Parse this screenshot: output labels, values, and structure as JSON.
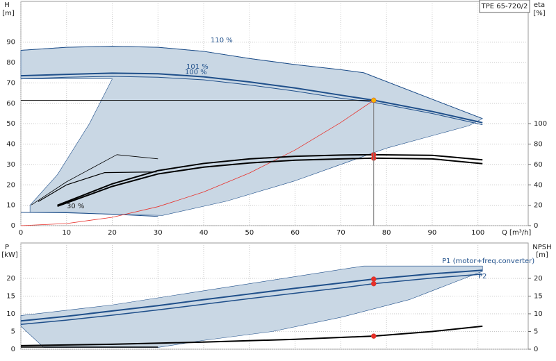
{
  "chart_data": [
    {
      "type": "line",
      "title": "TPE 65-720/2",
      "ylabel": [
        "H",
        "[m]"
      ],
      "y2label": [
        "eta",
        "[%]"
      ],
      "xlabel": "Q [m³/h]",
      "annotations": [
        "110 %",
        "101 %",
        "100 %",
        "30 %"
      ],
      "xlim": [
        0,
        111
      ],
      "xticks": [
        0,
        10,
        20,
        30,
        40,
        50,
        60,
        70,
        80,
        90,
        100
      ],
      "ylim": [
        0,
        110
      ],
      "yticks": [
        0,
        10,
        20,
        30,
        40,
        50,
        60,
        70,
        80,
        90
      ],
      "y2lim": [
        0,
        220
      ],
      "y2ticks": [
        0,
        20,
        40,
        60,
        80,
        100
      ],
      "grid": true,
      "series": [
        {
          "fill": "#c9d7e4",
          "color": "#1f4f8a",
          "width": 0.6,
          "x": [
            0,
            10,
            20,
            30,
            40,
            50,
            60,
            70,
            75,
            90,
            101,
            98,
            80,
            60,
            45,
            31,
            20,
            10,
            2,
            2,
            8,
            15,
            20,
            0
          ],
          "values": [
            86,
            87.5,
            88,
            87.5,
            85.5,
            82,
            79,
            76.5,
            75,
            62,
            52.5,
            49,
            38,
            22,
            12,
            5,
            5.5,
            6.5,
            6.5,
            10,
            25,
            50,
            72,
            72
          ]
        },
        {
          "color": "#1f4f8a",
          "width": 1,
          "x": [
            0,
            10,
            20,
            30,
            40,
            50,
            60,
            70,
            75,
            90,
            101
          ],
          "values": [
            86,
            87.5,
            88,
            87.5,
            85.5,
            82,
            79,
            76.5,
            75,
            62,
            52.5
          ]
        },
        {
          "color": "#1f4f8a",
          "width": 2,
          "x": [
            0,
            10,
            20,
            30,
            40,
            50,
            60,
            70,
            77.2,
            90,
            101
          ],
          "values": [
            73.5,
            74.2,
            74.8,
            74.5,
            73,
            70.5,
            67.5,
            64,
            61.5,
            56,
            50.5
          ]
        },
        {
          "color": "#1f4f8a",
          "width": 1,
          "x": [
            0,
            10,
            20,
            30,
            40,
            50,
            60,
            70,
            77.2,
            90,
            101
          ],
          "values": [
            72,
            72.8,
            73.2,
            72.8,
            71.5,
            69,
            66,
            62.5,
            60.5,
            55,
            49.5
          ]
        },
        {
          "color": "#1f4f8a",
          "width": 1,
          "x": [
            0,
            10,
            20,
            30
          ],
          "values": [
            6.5,
            6.3,
            5.6,
            4.5
          ]
        },
        {
          "color": "#e8302a",
          "width": 0.8,
          "x": [
            0,
            10,
            20,
            30,
            40,
            50,
            60,
            70,
            77.2
          ],
          "values": [
            0,
            1.03,
            4.1,
            9.3,
            16.5,
            25.8,
            37.1,
            50.6,
            61.5
          ]
        },
        {
          "color": "#000000",
          "width": 2,
          "axis": "y2",
          "x": [
            8,
            20,
            30,
            40,
            50,
            60,
            70,
            77.2,
            90,
            101
          ],
          "values": [
            19,
            38.5,
            50.7,
            57.4,
            61.5,
            64.2,
            65.5,
            66.2,
            65.5,
            60.8
          ]
        },
        {
          "color": "#000000",
          "width": 2,
          "axis": "y2",
          "x": [
            8,
            20,
            30,
            40,
            50,
            60,
            70,
            77.2,
            90,
            101
          ],
          "values": [
            20,
            41,
            54,
            61,
            65.5,
            68,
            69.2,
            69.6,
            69,
            64.5
          ]
        },
        {
          "color": "#000000",
          "width": 0.8,
          "axis": "y2",
          "x": [
            2.3,
            10,
            21,
            30
          ],
          "values": [
            20.3,
            43,
            69.6,
            65.5
          ]
        },
        {
          "color": "#000000",
          "width": 1.2,
          "axis": "y2",
          "x": [
            3.8,
            10,
            18.3,
            29.7
          ],
          "values": [
            23.6,
            40,
            52,
            52.7
          ]
        },
        {
          "marker": true,
          "color": "#f5b400",
          "x": [
            77.2
          ],
          "values": [
            61.5
          ]
        },
        {
          "marker": true,
          "color": "#e8302a",
          "axis": "y2",
          "x": [
            77.2,
            77.2
          ],
          "values": [
            66.2,
            69.6
          ]
        }
      ]
    },
    {
      "type": "line",
      "ylabel": [
        "P",
        "[kW]"
      ],
      "y2label": [
        "NPSH",
        "[m]"
      ],
      "annotations": [
        "P1 (motor+freq.converter)",
        "P2"
      ],
      "xlim": [
        0,
        111
      ],
      "xticks": [
        0,
        10,
        20,
        30,
        40,
        50,
        60,
        70,
        80,
        90,
        100
      ],
      "ylim": [
        0,
        30
      ],
      "yticks": [
        0,
        5,
        10,
        15,
        20
      ],
      "y2lim": [
        0,
        30
      ],
      "y2ticks": [
        0,
        5,
        10,
        15,
        20
      ],
      "grid": true,
      "series": [
        {
          "fill": "#c9d7e4",
          "color": "#1f4f8a",
          "width": 0.6,
          "x": [
            0,
            20,
            40,
            60,
            75,
            101,
            101,
            95,
            85,
            70,
            55,
            40,
            30,
            5,
            0
          ],
          "values": [
            9.5,
            12.5,
            16.5,
            20.5,
            23.5,
            23.5,
            22,
            19,
            14,
            9,
            5,
            2.5,
            0.5,
            0.5,
            6.5
          ]
        },
        {
          "color": "#1f4f8a",
          "width": 2,
          "x": [
            0,
            10,
            20,
            30,
            40,
            50,
            60,
            70,
            77.2,
            90,
            101
          ],
          "values": [
            8,
            9.3,
            10.8,
            12.3,
            14,
            15.6,
            17.2,
            18.7,
            19.8,
            21.3,
            22.3
          ]
        },
        {
          "color": "#1f4f8a",
          "width": 1.5,
          "x": [
            0,
            10,
            20,
            30,
            40,
            50,
            60,
            70,
            77.2,
            90,
            101
          ],
          "values": [
            7,
            8.2,
            9.6,
            11.1,
            12.7,
            14.3,
            15.8,
            17.3,
            18.5,
            20.1,
            21.2
          ]
        },
        {
          "color": "#000000",
          "width": 2,
          "axis": "y2",
          "x": [
            0,
            20,
            40,
            60,
            77.2,
            90,
            101
          ],
          "values": [
            1,
            1.4,
            2,
            2.8,
            3.7,
            5,
            6.5
          ]
        },
        {
          "color": "#000000",
          "width": 1.5,
          "axis": "y2",
          "x": [
            0,
            30
          ],
          "values": [
            0.6,
            0.6
          ]
        },
        {
          "marker": true,
          "color": "#e8302a",
          "x": [
            77.2,
            77.2
          ],
          "values": [
            19.8,
            18.5
          ]
        },
        {
          "marker": true,
          "color": "#e8302a",
          "axis": "y2",
          "x": [
            77.2
          ],
          "values": [
            3.7
          ]
        }
      ]
    }
  ]
}
